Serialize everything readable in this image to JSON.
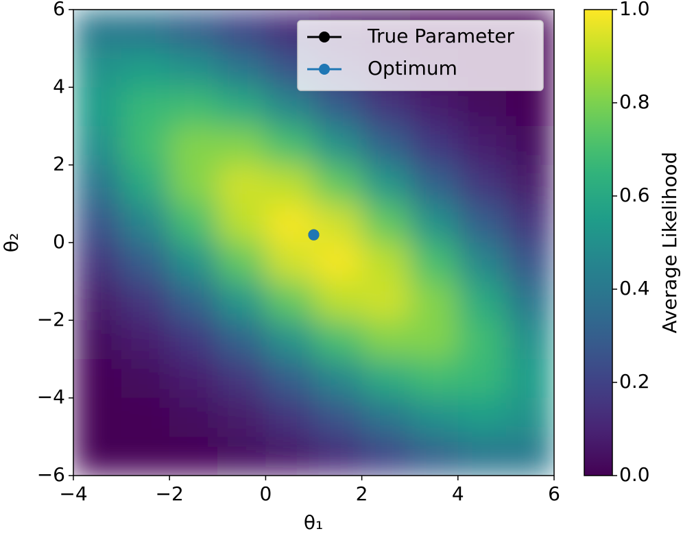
{
  "chart_data": {
    "type": "heatmap",
    "colormap": "viridis",
    "x_label": "θ₁",
    "y_label": "θ₂",
    "xlim": [
      -4,
      6
    ],
    "ylim": [
      -6,
      6
    ],
    "xticks": [
      {
        "value": -4,
        "label": "−4"
      },
      {
        "value": -2,
        "label": "−2"
      },
      0,
      2,
      4,
      6
    ],
    "yticks": [
      {
        "value": -6,
        "label": "−6"
      },
      {
        "value": -4,
        "label": "−4"
      },
      {
        "value": -2,
        "label": "−2"
      },
      0,
      2,
      4,
      6
    ],
    "x": [
      -3.5,
      -2.5,
      -1.5,
      -0.5,
      0.5,
      1.5,
      2.5,
      3.5,
      4.5,
      5.5
    ],
    "y": [
      5.5,
      4.5,
      3.5,
      2.5,
      1.5,
      0.5,
      -0.5,
      -1.5,
      -2.5,
      -3.5,
      -4.5,
      -5.5
    ],
    "z": [
      [
        0.4,
        0.38,
        0.31,
        0.21,
        0.12,
        0.06,
        0.03,
        0.01,
        0.0,
        0.0
      ],
      [
        0.51,
        0.55,
        0.5,
        0.39,
        0.26,
        0.15,
        0.07,
        0.03,
        0.01,
        0.0
      ],
      [
        0.55,
        0.67,
        0.69,
        0.61,
        0.46,
        0.3,
        0.16,
        0.08,
        0.03,
        0.01
      ],
      [
        0.5,
        0.69,
        0.81,
        0.81,
        0.7,
        0.51,
        0.32,
        0.17,
        0.08,
        0.03
      ],
      [
        0.39,
        0.61,
        0.81,
        0.93,
        0.9,
        0.75,
        0.53,
        0.32,
        0.16,
        0.07
      ],
      [
        0.26,
        0.46,
        0.7,
        0.9,
        0.99,
        0.93,
        0.75,
        0.51,
        0.3,
        0.15
      ],
      [
        0.15,
        0.3,
        0.51,
        0.75,
        0.93,
        0.99,
        0.9,
        0.7,
        0.46,
        0.26
      ],
      [
        0.07,
        0.16,
        0.32,
        0.53,
        0.75,
        0.9,
        0.93,
        0.81,
        0.61,
        0.39
      ],
      [
        0.03,
        0.08,
        0.17,
        0.32,
        0.51,
        0.7,
        0.81,
        0.81,
        0.69,
        0.5
      ],
      [
        0.01,
        0.03,
        0.08,
        0.16,
        0.3,
        0.46,
        0.61,
        0.69,
        0.67,
        0.55
      ],
      [
        0.0,
        0.01,
        0.03,
        0.07,
        0.15,
        0.26,
        0.39,
        0.5,
        0.55,
        0.51
      ],
      [
        0.0,
        0.0,
        0.01,
        0.03,
        0.06,
        0.12,
        0.21,
        0.31,
        0.38,
        0.4
      ]
    ],
    "colorbar": {
      "label": "Average Likelihood",
      "lim": [
        0,
        1
      ],
      "ticks": [
        {
          "value": 0,
          "label": "0.0"
        },
        0.2,
        0.4,
        0.6,
        0.8,
        {
          "value": 1,
          "label": "1.0"
        }
      ]
    },
    "series": [
      {
        "name": "True Parameter",
        "color": "#000000",
        "x": [
          1
        ],
        "y": [
          0.2
        ]
      },
      {
        "name": "Optimum",
        "color": "#1f77b4",
        "x": [
          1
        ],
        "y": [
          0.2
        ]
      }
    ],
    "legend": "upper right"
  }
}
